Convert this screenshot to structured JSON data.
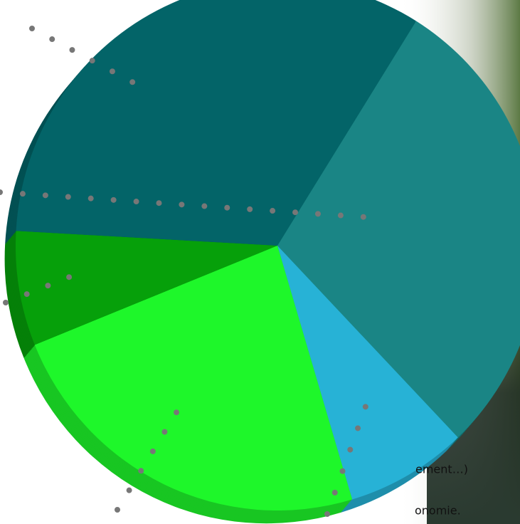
{
  "chart_data": {
    "type": "pie",
    "values": [
      29,
      7.5,
      23.5,
      7,
      33
    ],
    "colors": [
      "#1a8585",
      "#27b2d6",
      "#1ef72a",
      "#06a00a",
      "#036468"
    ],
    "annotations": [
      "ement…)",
      "onomie."
    ]
  }
}
